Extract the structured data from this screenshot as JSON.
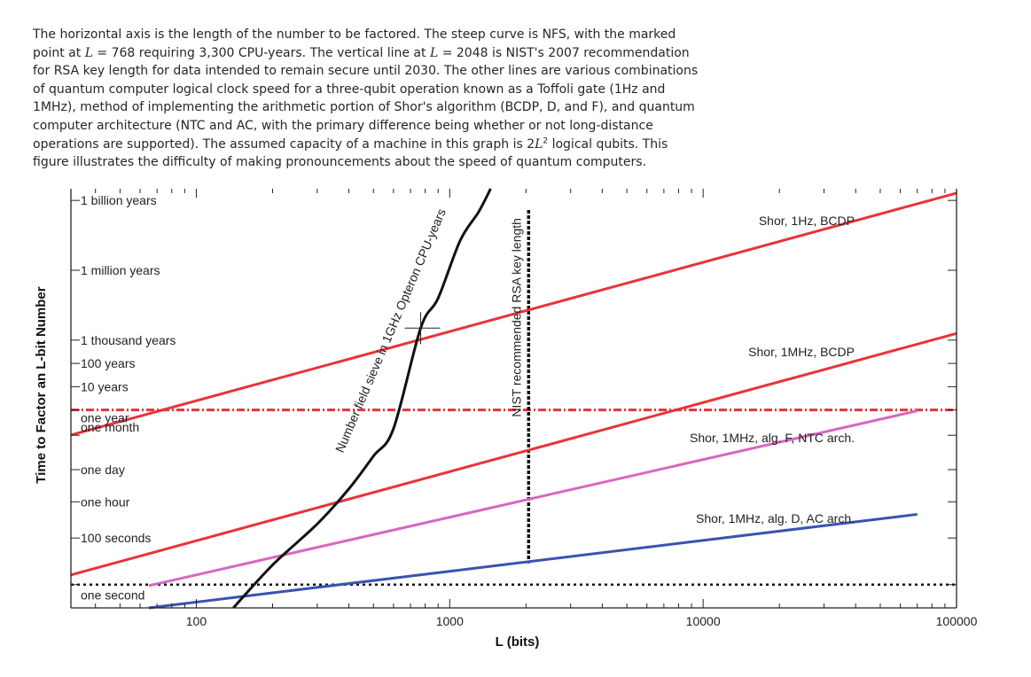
{
  "caption": {
    "p1": "The horizontal axis is the length of the number to be factored. The steep curve is NFS, with the marked point at ",
    "p2": " = 768 requiring 3,300 CPU-years. The vertical line at ",
    "p3": " = 2048 is NIST's 2007 recommendation for RSA key length for data intended to remain secure until 2030. The other lines are various combinations of quantum computer logical clock speed for a three-qubit operation known as a Toffoli gate (1Hz and 1MHz), method of implementing the arithmetic portion of Shor's algorithm (BCDP, D, and F), and quantum computer architecture (NTC and AC, with the primary difference being whether or not long-distance operations are supported). The assumed capacity of a machine in this graph is 2",
    "p4": " logical qubits. This figure illustrates the difficulty of making pronouncements about the speed of quantum computers.",
    "var_L": "L",
    "var_L2": "L",
    "sup2": "2"
  },
  "chart_data": {
    "type": "line",
    "xlabel": "L (bits)",
    "ylabel": "Time to Factor an L-bit Number",
    "x_scale": "log",
    "y_scale": "log",
    "xlim": [
      32,
      100000
    ],
    "ylim_seconds": [
      0.1,
      1e+17
    ],
    "x_ticks": [
      {
        "value": 100,
        "label": "100"
      },
      {
        "value": 1000,
        "label": "1000"
      },
      {
        "value": 10000,
        "label": "10000"
      },
      {
        "value": 100000,
        "label": "100000"
      }
    ],
    "y_ticks": [
      {
        "seconds": 1,
        "label": "one second"
      },
      {
        "seconds": 100,
        "label": "100 seconds"
      },
      {
        "seconds": 3600,
        "label": "one hour"
      },
      {
        "seconds": 86400,
        "label": "one day"
      },
      {
        "seconds": 2592000,
        "label": "one month"
      },
      {
        "seconds": 31536000,
        "label": "one year"
      },
      {
        "seconds": 315360000,
        "label": "10 years"
      },
      {
        "seconds": 3153600000,
        "label": "100 years"
      },
      {
        "seconds": 31536000000,
        "label": "1 thousand years"
      },
      {
        "seconds": 31536000000000,
        "label": "1 million years"
      },
      {
        "seconds": 31536000000000000,
        "label": "1 billion years"
      }
    ],
    "series": [
      {
        "name": "Shor, 1Hz, BCDP",
        "color": "#e8333a",
        "x": [
          32,
          100000
        ],
        "y": [
          2660000.0,
          6.5e+16
        ]
      },
      {
        "name": "Shor, 1MHz, BCDP",
        "color": "#e8333a",
        "x": [
          32,
          100000
        ],
        "y": [
          2.6,
          61000000000.0
        ]
      },
      {
        "name": "Shor, 1MHz, alg. F, NTC arch.",
        "color": "#d966c0",
        "x": [
          65,
          70000
        ],
        "y": [
          0.9,
          29000000.0
        ]
      },
      {
        "name": "Shor, 1MHz, alg. D, AC arch.",
        "color": "#3a53b0",
        "x": [
          65,
          70000
        ],
        "y": [
          0.1,
          1040
        ]
      },
      {
        "name": "Number field sieve in 1GHz Opteron CPU-years",
        "color": "#111111",
        "x": [
          140,
          200,
          300,
          400,
          500,
          600,
          768,
          900,
          1100,
          1300,
          1450
        ],
        "y": [
          0.1,
          7,
          400,
          13000,
          330000.0,
          5000000.0,
          104000000000.0,
          2000000000000.0,
          600000000000000.0,
          1e+16,
          1e+17
        ]
      }
    ],
    "reference_lines": [
      {
        "orientation": "horizontal",
        "seconds": 1,
        "style": "dotted",
        "color": "#111111"
      },
      {
        "orientation": "horizontal",
        "seconds": 31536000,
        "style": "dash-dot",
        "color": "#e8333a"
      },
      {
        "orientation": "vertical",
        "x": 2048,
        "style": "dashed",
        "color": "#111111",
        "label": "NIST recommended RSA key length"
      }
    ],
    "marked_point": {
      "x": 768,
      "cpu_years": 3300
    },
    "grid": false
  }
}
